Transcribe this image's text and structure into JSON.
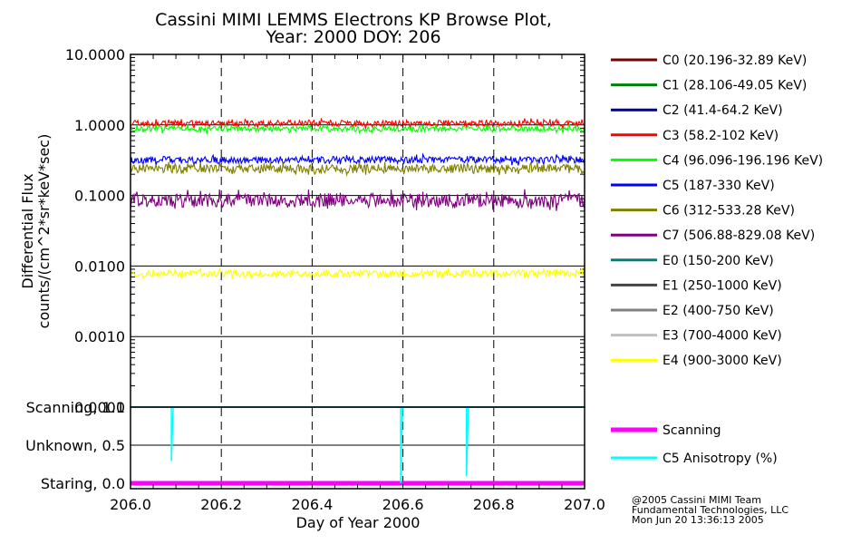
{
  "chart_data": {
    "type": "line",
    "title_line1": "Cassini MIMI LEMMS Electrons KP Browse Plot,",
    "title_line2": "Year: 2000 DOY: 206",
    "xlabel": "Day of Year 2000",
    "ylabel_line1": "Differential Flux",
    "ylabel_line2": "counts/(cm^2*sr*keV*sec)",
    "x_range": [
      206.0,
      207.0
    ],
    "x_ticks": [
      206.0,
      206.2,
      206.4,
      206.6,
      206.8,
      207.0
    ],
    "x_tick_labels": [
      "206.0",
      "206.2",
      "206.4",
      "206.6",
      "206.8",
      "207.0"
    ],
    "flux_panel": {
      "yscale": "log",
      "ylim": [
        0.0001,
        10.0
      ],
      "y_ticks": [
        10.0,
        1.0,
        0.1,
        0.01,
        0.001,
        0.0001
      ],
      "y_tick_labels": [
        "10.0000",
        "1.0000",
        "0.1000",
        "0.0100",
        "0.0010",
        "0.0001"
      ],
      "series": [
        {
          "name": "C0 (20.196-32.89 KeV)",
          "color": "#7a0000",
          "level": null
        },
        {
          "name": "C1 (28.106-49.05 KeV)",
          "color": "#00800a",
          "level": null
        },
        {
          "name": "C2 (41.4-64.2 KeV)",
          "color": "#00007a",
          "level": null
        },
        {
          "name": "C3 (58.2-102 KeV)",
          "color": "#ff0000",
          "level": 1.05
        },
        {
          "name": "C4 (96.096-196.196 KeV)",
          "color": "#00ff00",
          "level": 0.88
        },
        {
          "name": "C5 (187-330 KeV)",
          "color": "#0000ff",
          "level": 0.32
        },
        {
          "name": "C6 (312-533.28 KeV)",
          "color": "#808000",
          "level": 0.24
        },
        {
          "name": "C7 (506.88-829.08 KeV)",
          "color": "#800080",
          "level": 0.085
        },
        {
          "name": "E0 (150-200 KeV)",
          "color": "#008080",
          "level": null
        },
        {
          "name": "E1 (250-1000 KeV)",
          "color": "#444444",
          "level": null
        },
        {
          "name": "E2 (400-750 KeV)",
          "color": "#808080",
          "level": null
        },
        {
          "name": "E3 (700-4000 KeV)",
          "color": "#c0c0c0",
          "level": null
        },
        {
          "name": "E4 (900-3000 KeV)",
          "color": "#ffff00",
          "level": 0.0078
        }
      ]
    },
    "status_panel": {
      "ylim": [
        0.0,
        1.0
      ],
      "y_ticks": [
        1.0,
        0.5,
        0.0
      ],
      "y_tick_labels": [
        "Scanning, 1.0",
        "Unknown, 0.5",
        "Staring, 0.0"
      ],
      "series": [
        {
          "name": "Scanning",
          "color": "#ff00ff",
          "value": 0.0
        },
        {
          "name": "C5 Anisotropy (%)",
          "color": "#00ffff",
          "value": 1.0,
          "dips": [
            [
              206.09,
              0.29
            ],
            [
              206.595,
              0.0
            ],
            [
              206.74,
              0.09
            ]
          ]
        }
      ]
    }
  },
  "credits": {
    "line1": "@2005 Cassini MIMI Team",
    "line2": "Fundamental Technologies, LLC",
    "line3": "Mon Jun 20 13:36:13 2005"
  }
}
